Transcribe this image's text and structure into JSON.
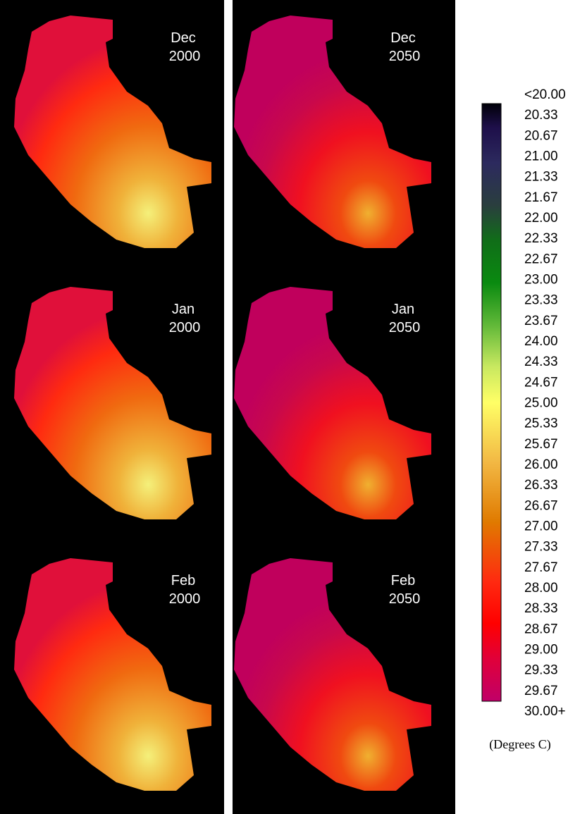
{
  "panels": [
    {
      "month": "Dec",
      "year": "2000"
    },
    {
      "month": "Dec",
      "year": "2050"
    },
    {
      "month": "Jan",
      "year": "2000"
    },
    {
      "month": "Jan",
      "year": "2050"
    },
    {
      "month": "Feb",
      "year": "2000"
    },
    {
      "month": "Feb",
      "year": "2050"
    }
  ],
  "legend": {
    "labels": [
      "<20.00",
      "20.33",
      "20.67",
      "21.00",
      "21.33",
      "21.67",
      "22.00",
      "22.33",
      "22.67",
      "23.00",
      "23.33",
      "23.67",
      "24.00",
      "24.33",
      "24.67",
      "25.00",
      "25.33",
      "25.67",
      "26.00",
      "26.33",
      "26.67",
      "27.00",
      "27.33",
      "27.67",
      "28.00",
      "28.33",
      "28.67",
      "29.00",
      "29.33",
      "29.67",
      "30.00+"
    ],
    "unit": "(Degrees C)"
  }
}
